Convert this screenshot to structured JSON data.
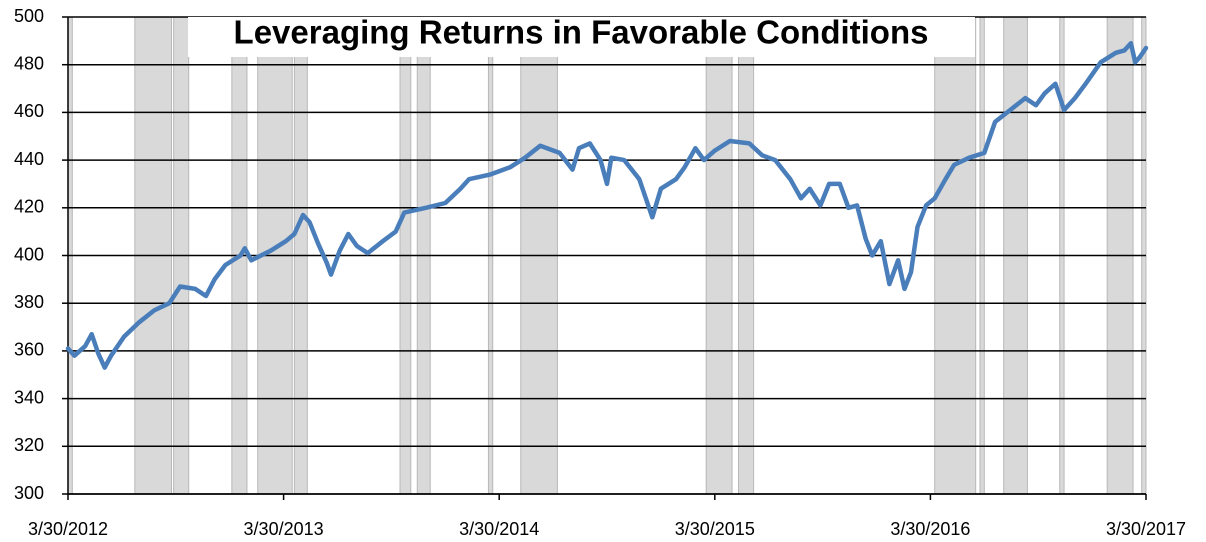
{
  "chart_data": {
    "type": "line",
    "title": "Leveraging Returns in Favorable Conditions",
    "x": [
      2012.24,
      2012.27,
      2012.32,
      2012.35,
      2012.38,
      2012.41,
      2012.44,
      2012.5,
      2012.57,
      2012.64,
      2012.71,
      2012.76,
      2012.83,
      2012.88,
      2012.92,
      2012.97,
      2013.04,
      2013.06,
      2013.09,
      2013.18,
      2013.25,
      2013.29,
      2013.33,
      2013.36,
      2013.4,
      2013.44,
      2013.46,
      2013.5,
      2013.54,
      2013.58,
      2013.63,
      2013.7,
      2013.76,
      2013.8,
      2013.9,
      2013.99,
      2014.06,
      2014.1,
      2014.2,
      2014.29,
      2014.36,
      2014.43,
      2014.52,
      2014.58,
      2014.61,
      2014.66,
      2014.71,
      2014.74,
      2014.76,
      2014.82,
      2014.89,
      2014.95,
      2014.99,
      2015.06,
      2015.1,
      2015.15,
      2015.19,
      2015.24,
      2015.31,
      2015.4,
      2015.46,
      2015.52,
      2015.59,
      2015.64,
      2015.68,
      2015.73,
      2015.77,
      2015.82,
      2015.86,
      2015.9,
      2015.94,
      2015.97,
      2016.01,
      2016.03,
      2016.05,
      2016.09,
      2016.12,
      2016.15,
      2016.18,
      2016.22,
      2016.26,
      2016.31,
      2016.35,
      2016.42,
      2016.49,
      2016.54,
      2016.61,
      2016.68,
      2016.73,
      2016.77,
      2016.82,
      2016.86,
      2016.91,
      2016.96,
      2017.03,
      2017.1,
      2017.14,
      2017.17,
      2017.19,
      2017.21,
      2017.24
    ],
    "series": [
      {
        "color": "#4a7ebb",
        "values": [
          361,
          358,
          362,
          367,
          359,
          353,
          358,
          366,
          372,
          377,
          380,
          387,
          386,
          383,
          390,
          396,
          400,
          403,
          398,
          402,
          406,
          409,
          417,
          414,
          405,
          397,
          392,
          402,
          409,
          404,
          401,
          406,
          410,
          418,
          420,
          422,
          428,
          432,
          434,
          437,
          441,
          446,
          443,
          436,
          445,
          447,
          440,
          430,
          441,
          440,
          432,
          416,
          428,
          432,
          437,
          445,
          440,
          444,
          448,
          447,
          442,
          440,
          432,
          424,
          428,
          421,
          430,
          430,
          420,
          421,
          407,
          400,
          406,
          397,
          388,
          398,
          386,
          393,
          412,
          421,
          424,
          432,
          438,
          441,
          443,
          456,
          461,
          466,
          463,
          468,
          472,
          461,
          466,
          472,
          481,
          485,
          486,
          489,
          481,
          483,
          487
        ]
      }
    ],
    "shaded_periods": [
      [
        2012.24,
        2012.26
      ],
      [
        2012.55,
        2012.72
      ],
      [
        2012.73,
        2012.8
      ],
      [
        2013.0,
        2013.07
      ],
      [
        2013.12,
        2013.28
      ],
      [
        2013.29,
        2013.35
      ],
      [
        2013.78,
        2013.83
      ],
      [
        2013.86,
        2013.92
      ],
      [
        2014.19,
        2014.21
      ],
      [
        2014.34,
        2014.51
      ],
      [
        2015.2,
        2015.32
      ],
      [
        2015.35,
        2015.42
      ],
      [
        2016.26,
        2016.45
      ],
      [
        2016.47,
        2016.49
      ],
      [
        2016.58,
        2016.69
      ],
      [
        2016.84,
        2016.86
      ],
      [
        2017.06,
        2017.18
      ],
      [
        2017.22,
        2017.24
      ]
    ],
    "shade_color": "#d9d9d9",
    "xlim": [
      2012.24,
      2017.24
    ],
    "xticks": [
      {
        "value": 2012.24,
        "label": "3/30/2012"
      },
      {
        "value": 2013.24,
        "label": "3/30/2013"
      },
      {
        "value": 2014.24,
        "label": "3/30/2014"
      },
      {
        "value": 2015.24,
        "label": "3/30/2015"
      },
      {
        "value": 2016.24,
        "label": "3/30/2016"
      },
      {
        "value": 2017.24,
        "label": "3/30/2017"
      }
    ],
    "ylim": [
      300,
      500
    ],
    "yticks": [
      300,
      320,
      340,
      360,
      380,
      400,
      420,
      440,
      460,
      480,
      500
    ],
    "grid": true
  }
}
